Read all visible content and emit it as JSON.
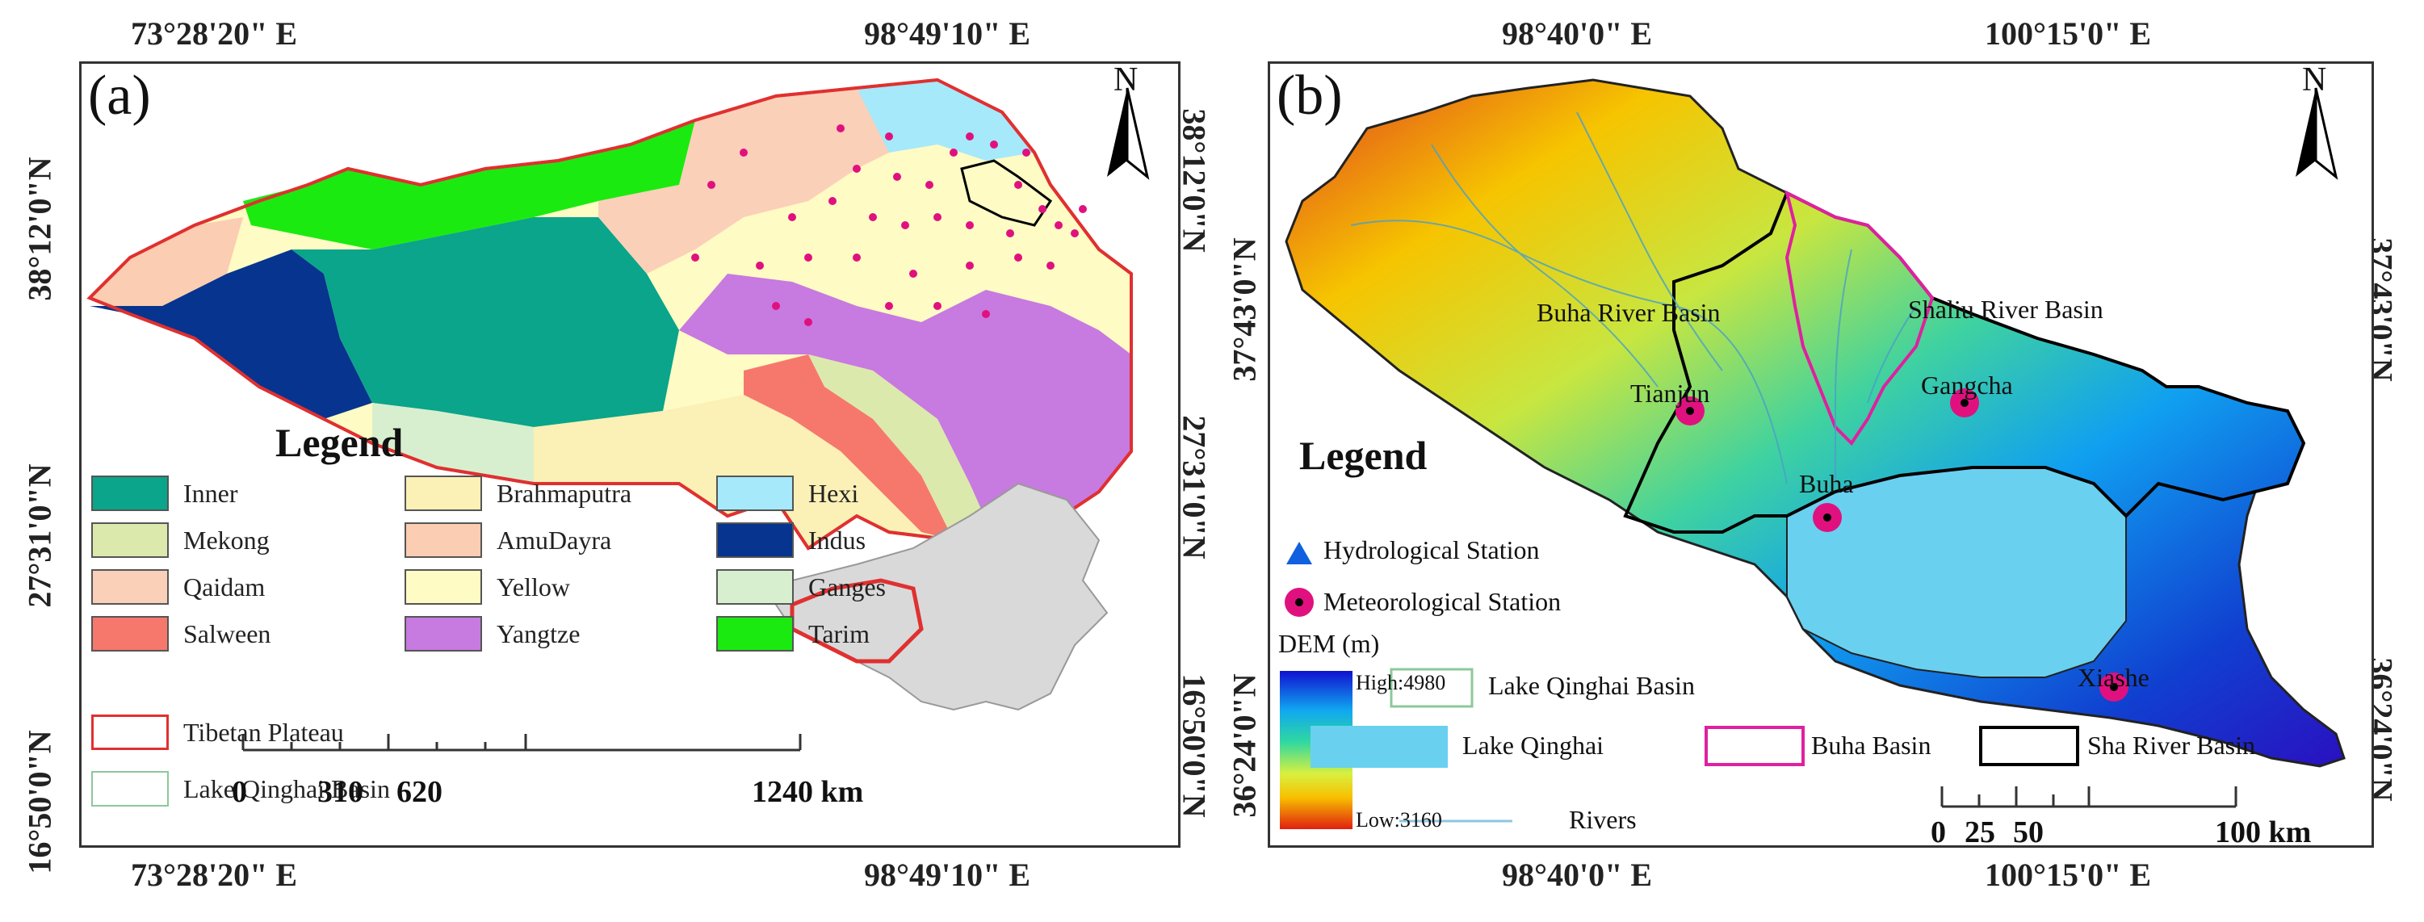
{
  "coords": {
    "a_top_left": "73°28'20\" E",
    "a_top_right": "98°49'10\" E",
    "a_bottom_left": "73°28'20\" E",
    "a_bottom_right": "98°49'10\" E",
    "a_left_1": "38°12'0\"N",
    "a_left_2": "27°31'0\"N",
    "a_left_3": "16°50'0\"N",
    "a_right_1": "38°12'0\"N",
    "a_right_2": "27°31'0\"N",
    "a_right_3": "16°50'0\"N",
    "b_top_left": "98°40'0\" E",
    "b_top_right": "100°15'0\" E",
    "b_bottom_left": "98°40'0\" E",
    "b_bottom_right": "100°15'0\" E",
    "b_left_1": "37°43'0\"N",
    "b_left_2": "36°24'0\"N",
    "b_right_1": "37°43'0\"N",
    "b_right_2": "36°24'0\"N"
  },
  "panel_a": {
    "label": "(a)",
    "north": "N",
    "legend_title": "Legend",
    "legend": [
      {
        "name": "Inner",
        "color": "#0aa58a"
      },
      {
        "name": "Mekong",
        "color": "#dbe9ad"
      },
      {
        "name": "Qaidam",
        "color": "#fbd0b8"
      },
      {
        "name": "Salween",
        "color": "#f6786c"
      },
      {
        "name": "Brahmaputra",
        "color": "#fbf0b6"
      },
      {
        "name": "AmuDayra",
        "color": "#fbcdb2"
      },
      {
        "name": "Yellow",
        "color": "#fefbc4"
      },
      {
        "name": "Yangtze",
        "color": "#c77ae0"
      },
      {
        "name": "Hexi",
        "color": "#a5e9fb"
      },
      {
        "name": "Indus",
        "color": "#06348e"
      },
      {
        "name": "Ganges",
        "color": "#d7efcf"
      },
      {
        "name": "Tarim",
        "color": "#1bea10"
      }
    ],
    "tp_label": "Tibetan Plateau",
    "lqb_label": "Lake Qinghai  Basin",
    "scale": [
      "0",
      "310",
      "620",
      "1240 km"
    ]
  },
  "panel_b": {
    "label": "(b)",
    "north": "N",
    "legend_title": "Legend",
    "hydro": "Hydrological Station",
    "meteo": "Meteorological Station",
    "dem": "DEM (m)",
    "dem_high": "High:4980",
    "dem_low": "Low:3160",
    "lqb": "Lake Qinghai  Basin",
    "lake": "Lake Qinghai",
    "buha_basin": "Buha Basin",
    "sha_basin": "Sha River Basin",
    "rivers": "Rivers",
    "buha_river_basin": "Buha River Basin",
    "shaliu_river_basin": "Shaliu River Basin",
    "stations": [
      "Tianjun",
      "Gangcha",
      "Buha",
      "Xiashe"
    ],
    "scale": [
      "0",
      "25",
      "50",
      "100 km"
    ]
  }
}
